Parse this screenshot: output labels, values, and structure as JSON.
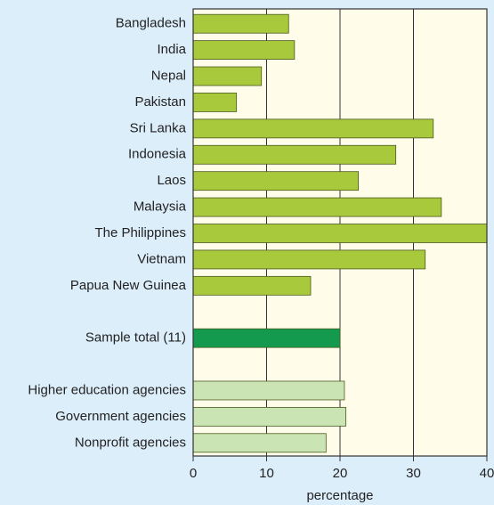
{
  "chart_data": {
    "type": "barh",
    "categories": [
      "Bangladesh",
      "India",
      "Nepal",
      "Pakistan",
      "Sri Lanka",
      "Indonesia",
      "Laos",
      "Malaysia",
      "The Philippines",
      "Vietnam",
      "Papua New Guinea",
      null,
      "Sample total (11)",
      null,
      "Higher education agencies",
      "Government agencies",
      "Nonprofit agencies"
    ],
    "values": [
      13,
      13.8,
      9.3,
      5.9,
      32.7,
      27.6,
      22.5,
      33.8,
      40,
      31.6,
      16,
      null,
      20,
      null,
      20.6,
      20.8,
      18.1
    ],
    "colors": [
      "#a9c93c",
      "#a9c93c",
      "#a9c93c",
      "#a9c93c",
      "#a9c93c",
      "#a9c93c",
      "#a9c93c",
      "#a9c93c",
      "#a9c93c",
      "#a9c93c",
      "#a9c93c",
      null,
      "#139a4e",
      null,
      "#cbe4b3",
      "#cbe4b3",
      "#cbe4b3"
    ],
    "x_label": "percentage",
    "xlim": [
      0,
      40
    ],
    "xticks": [
      0,
      10,
      20,
      30,
      40
    ],
    "grid": true
  }
}
